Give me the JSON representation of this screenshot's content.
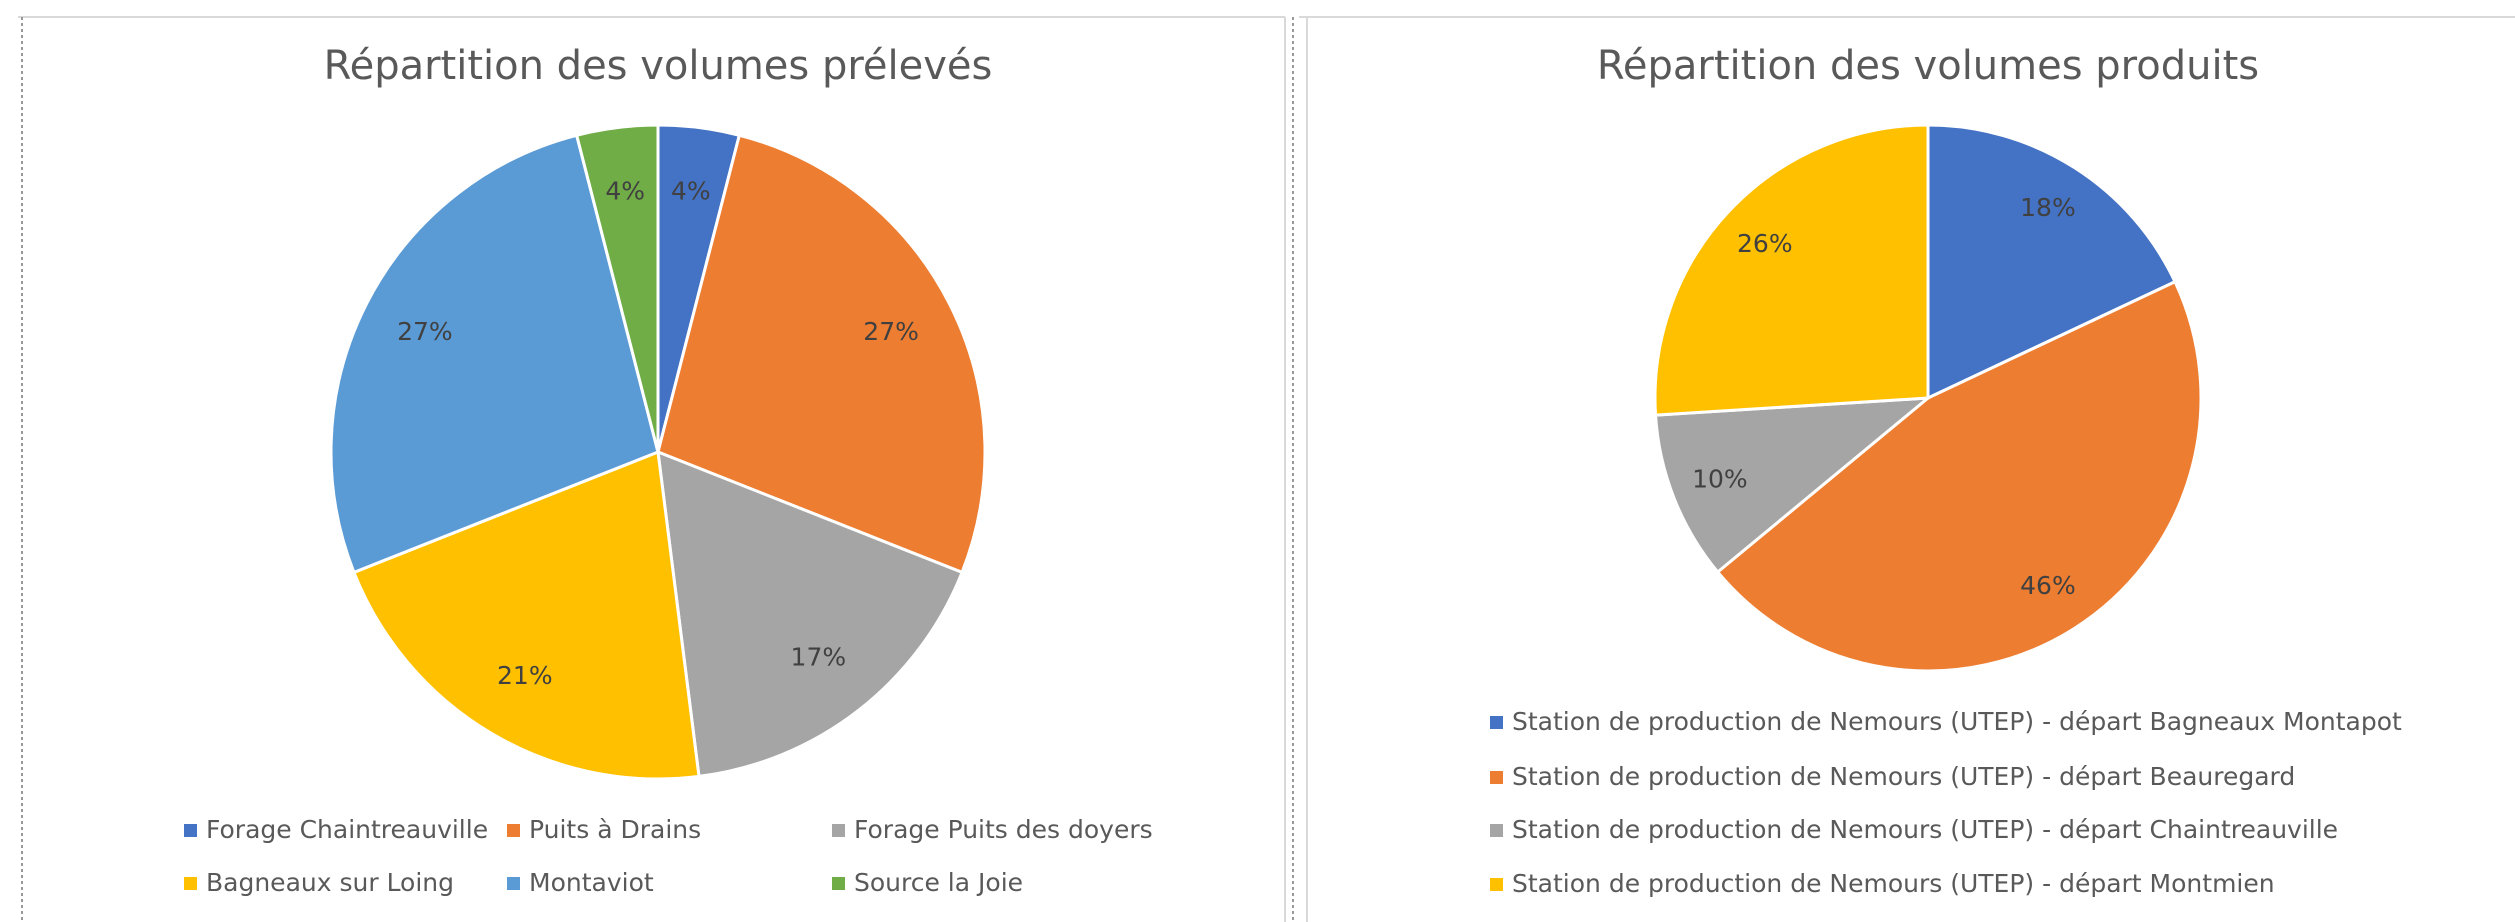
{
  "chart_data": [
    {
      "type": "pie",
      "title": "Répartition des volumes prélevés",
      "categories": [
        "Forage Chaintreauville",
        "Puits à Drains",
        "Forage Puits des doyers",
        "Bagneaux sur Loing",
        "Montaviot",
        "Source la Joie"
      ],
      "values": [
        4,
        27,
        17,
        21,
        27,
        4
      ],
      "value_labels": [
        "4%",
        "27%",
        "17%",
        "21%",
        "27%",
        "4%"
      ],
      "colors": [
        "#4472c4",
        "#ed7d31",
        "#a5a5a5",
        "#ffc000",
        "#5b9bd5",
        "#70ad47"
      ],
      "legend": "bottom"
    },
    {
      "type": "pie",
      "title": "Répartition des volumes produits",
      "categories": [
        "Station de production de Nemours (UTEP) - départ Bagneaux Montapot",
        "Station de production de Nemours (UTEP) - départ Beauregard",
        "Station de production de Nemours (UTEP) - départ Chaintreauville",
        "Station de production de Nemours (UTEP) - départ Montmien"
      ],
      "values": [
        18,
        46,
        10,
        26
      ],
      "value_labels": [
        "18%",
        "46%",
        "10%",
        "26%"
      ],
      "colors": [
        "#4472c4",
        "#ed7d31",
        "#a5a5a5",
        "#ffc000"
      ],
      "legend": "bottom"
    }
  ]
}
